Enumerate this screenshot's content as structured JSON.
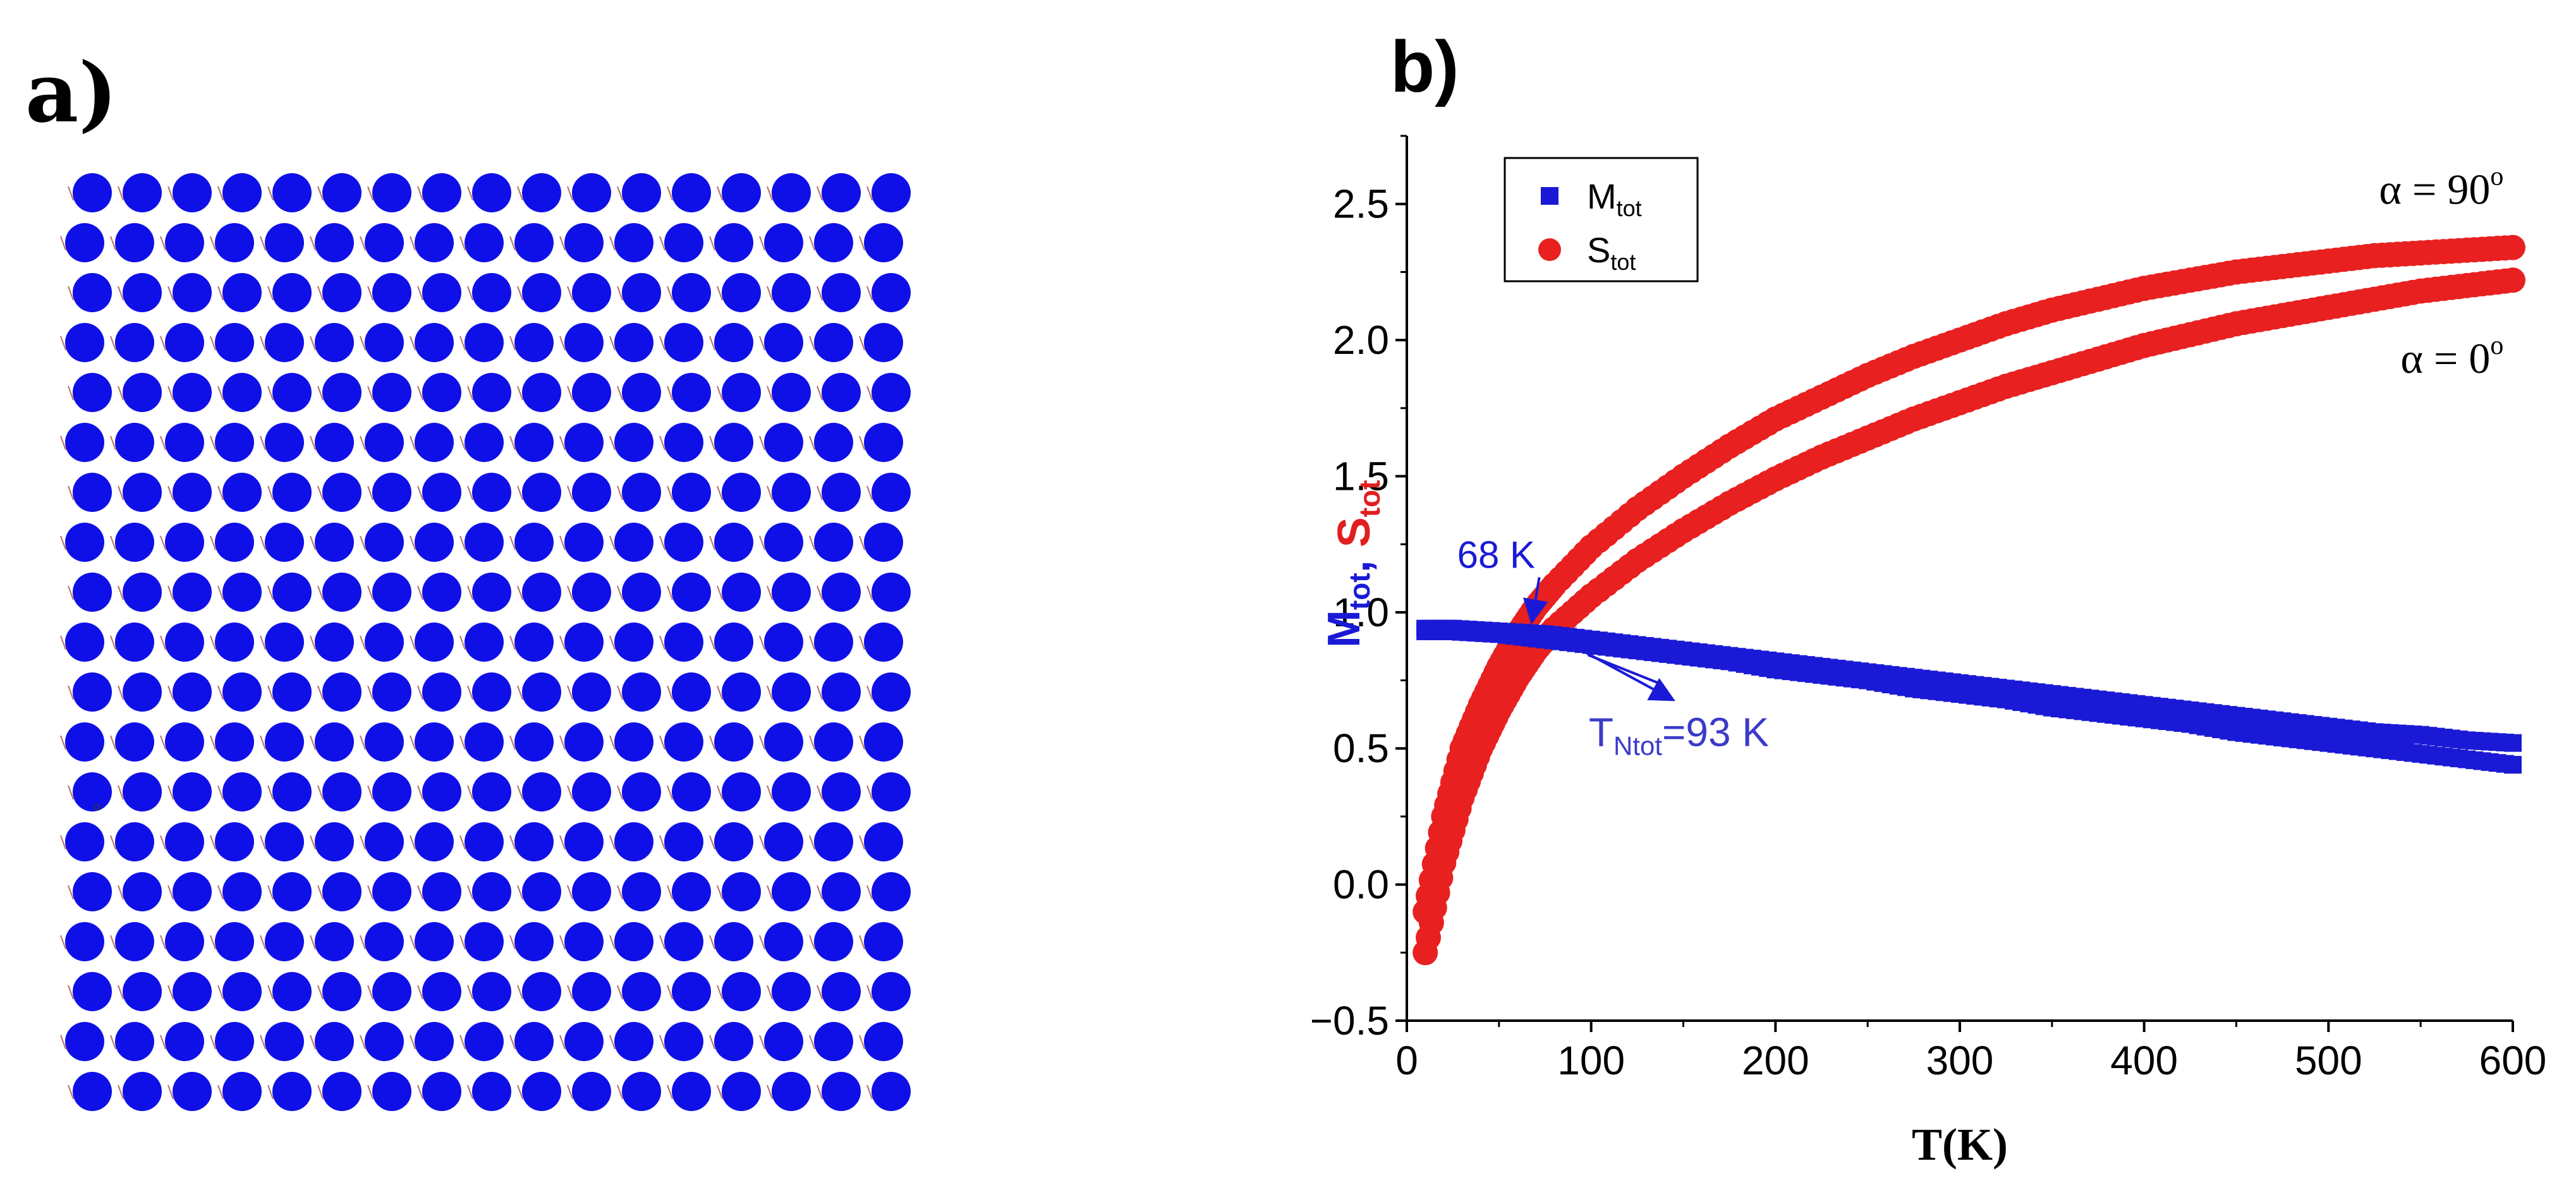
{
  "panel_a": {
    "label": "a)",
    "lattice": {
      "rows": 19,
      "cols": 17,
      "circle_color": "#0f0fe8",
      "tiny_label": "α"
    }
  },
  "panel_b": {
    "label": "b)"
  },
  "chart_data": {
    "type": "scatter",
    "title": "",
    "xlabel": "T(K)",
    "ylabel_parts": [
      {
        "text": "M",
        "sub": "tot",
        "color": "#1a1ad6"
      },
      {
        "text": ",",
        "sub": "",
        "color": "#1a1ad6"
      },
      {
        "text": " S",
        "sub": "tot",
        "color": "#e02020"
      }
    ],
    "xlim": [
      0,
      600
    ],
    "ylim": [
      -0.5,
      2.75
    ],
    "xticks": [
      "0",
      "100",
      "200",
      "300",
      "400",
      "500",
      "600"
    ],
    "xtick_values": [
      0,
      100,
      200,
      300,
      400,
      500,
      600
    ],
    "yticks": [
      "−0.5",
      "0.0",
      "0.5",
      "1.0",
      "1.5",
      "2.0",
      "2.5"
    ],
    "ytick_values": [
      -0.5,
      0.0,
      0.5,
      1.0,
      1.5,
      2.0,
      2.5
    ],
    "legend": {
      "position": "top-left",
      "entries": [
        {
          "name": "M",
          "sub": "tot",
          "marker": "square",
          "color": "#1a1ad6"
        },
        {
          "name": "S",
          "sub": "tot",
          "marker": "circle",
          "color": "#e82020"
        }
      ]
    },
    "series": [
      {
        "name": "S_tot (α = 90°)",
        "marker": "circle",
        "color": "#e82020",
        "x": [
          10,
          20,
          30,
          40,
          50,
          60,
          70,
          80,
          100,
          125,
          150,
          175,
          200,
          225,
          250,
          275,
          300,
          325,
          350,
          375,
          400,
          425,
          450,
          475,
          500,
          525,
          550,
          575,
          600
        ],
        "y": [
          -0.1,
          0.25,
          0.5,
          0.66,
          0.8,
          0.92,
          1.02,
          1.1,
          1.24,
          1.38,
          1.5,
          1.61,
          1.71,
          1.79,
          1.87,
          1.94,
          2.0,
          2.06,
          2.11,
          2.15,
          2.19,
          2.22,
          2.25,
          2.27,
          2.29,
          2.31,
          2.32,
          2.33,
          2.34
        ]
      },
      {
        "name": "S_tot (α = 0°)",
        "marker": "circle",
        "color": "#e82020",
        "x": [
          10,
          20,
          30,
          40,
          50,
          60,
          70,
          80,
          100,
          125,
          150,
          175,
          200,
          225,
          250,
          275,
          300,
          325,
          350,
          375,
          400,
          425,
          450,
          475,
          500,
          525,
          550,
          575,
          600
        ],
        "y": [
          -0.25,
          0.08,
          0.32,
          0.5,
          0.64,
          0.76,
          0.86,
          0.94,
          1.06,
          1.19,
          1.3,
          1.4,
          1.49,
          1.57,
          1.64,
          1.71,
          1.77,
          1.83,
          1.88,
          1.93,
          1.98,
          2.02,
          2.06,
          2.09,
          2.12,
          2.15,
          2.18,
          2.2,
          2.22
        ]
      },
      {
        "name": "M_tot (α = 90°)",
        "marker": "square",
        "color": "#1a1ad6",
        "x": [
          10,
          25,
          50,
          75,
          100,
          125,
          150,
          175,
          200,
          225,
          250,
          275,
          300,
          325,
          350,
          375,
          400,
          425,
          450,
          475,
          500,
          525,
          550,
          575,
          600
        ],
        "y": [
          0.94,
          0.94,
          0.93,
          0.92,
          0.9,
          0.88,
          0.86,
          0.84,
          0.82,
          0.8,
          0.78,
          0.76,
          0.74,
          0.72,
          0.7,
          0.68,
          0.66,
          0.64,
          0.62,
          0.6,
          0.58,
          0.56,
          0.55,
          0.53,
          0.52
        ]
      },
      {
        "name": "M_tot (α = 0°)",
        "marker": "square",
        "color": "#1a1ad6",
        "x": [
          10,
          25,
          50,
          75,
          100,
          125,
          150,
          175,
          200,
          225,
          250,
          275,
          300,
          325,
          350,
          375,
          400,
          425,
          450,
          475,
          500,
          525,
          550,
          575,
          600
        ],
        "y": [
          0.93,
          0.93,
          0.92,
          0.9,
          0.88,
          0.86,
          0.84,
          0.82,
          0.79,
          0.77,
          0.75,
          0.72,
          0.7,
          0.68,
          0.65,
          0.63,
          0.61,
          0.59,
          0.56,
          0.54,
          0.52,
          0.5,
          0.48,
          0.46,
          0.44
        ]
      }
    ],
    "annotations": [
      {
        "id": "alpha90",
        "text": "α = 90",
        "sup": "o",
        "at": [
          595,
          2.5
        ]
      },
      {
        "id": "alpha0",
        "text": "α = 0",
        "sup": "o",
        "at": [
          595,
          1.88
        ]
      },
      {
        "id": "k68",
        "text": "68 K",
        "color": "#1a1ad6",
        "at": [
          65,
          1.14
        ],
        "arrow_to": [
          68,
          0.95
        ]
      },
      {
        "id": "tn",
        "text": "T",
        "sub": "Ntot",
        "suffix": "=93 K",
        "color": "#3a3ac8",
        "at": [
          85,
          0.52
        ],
        "arrow_to": [
          88,
          0.89
        ]
      }
    ]
  }
}
